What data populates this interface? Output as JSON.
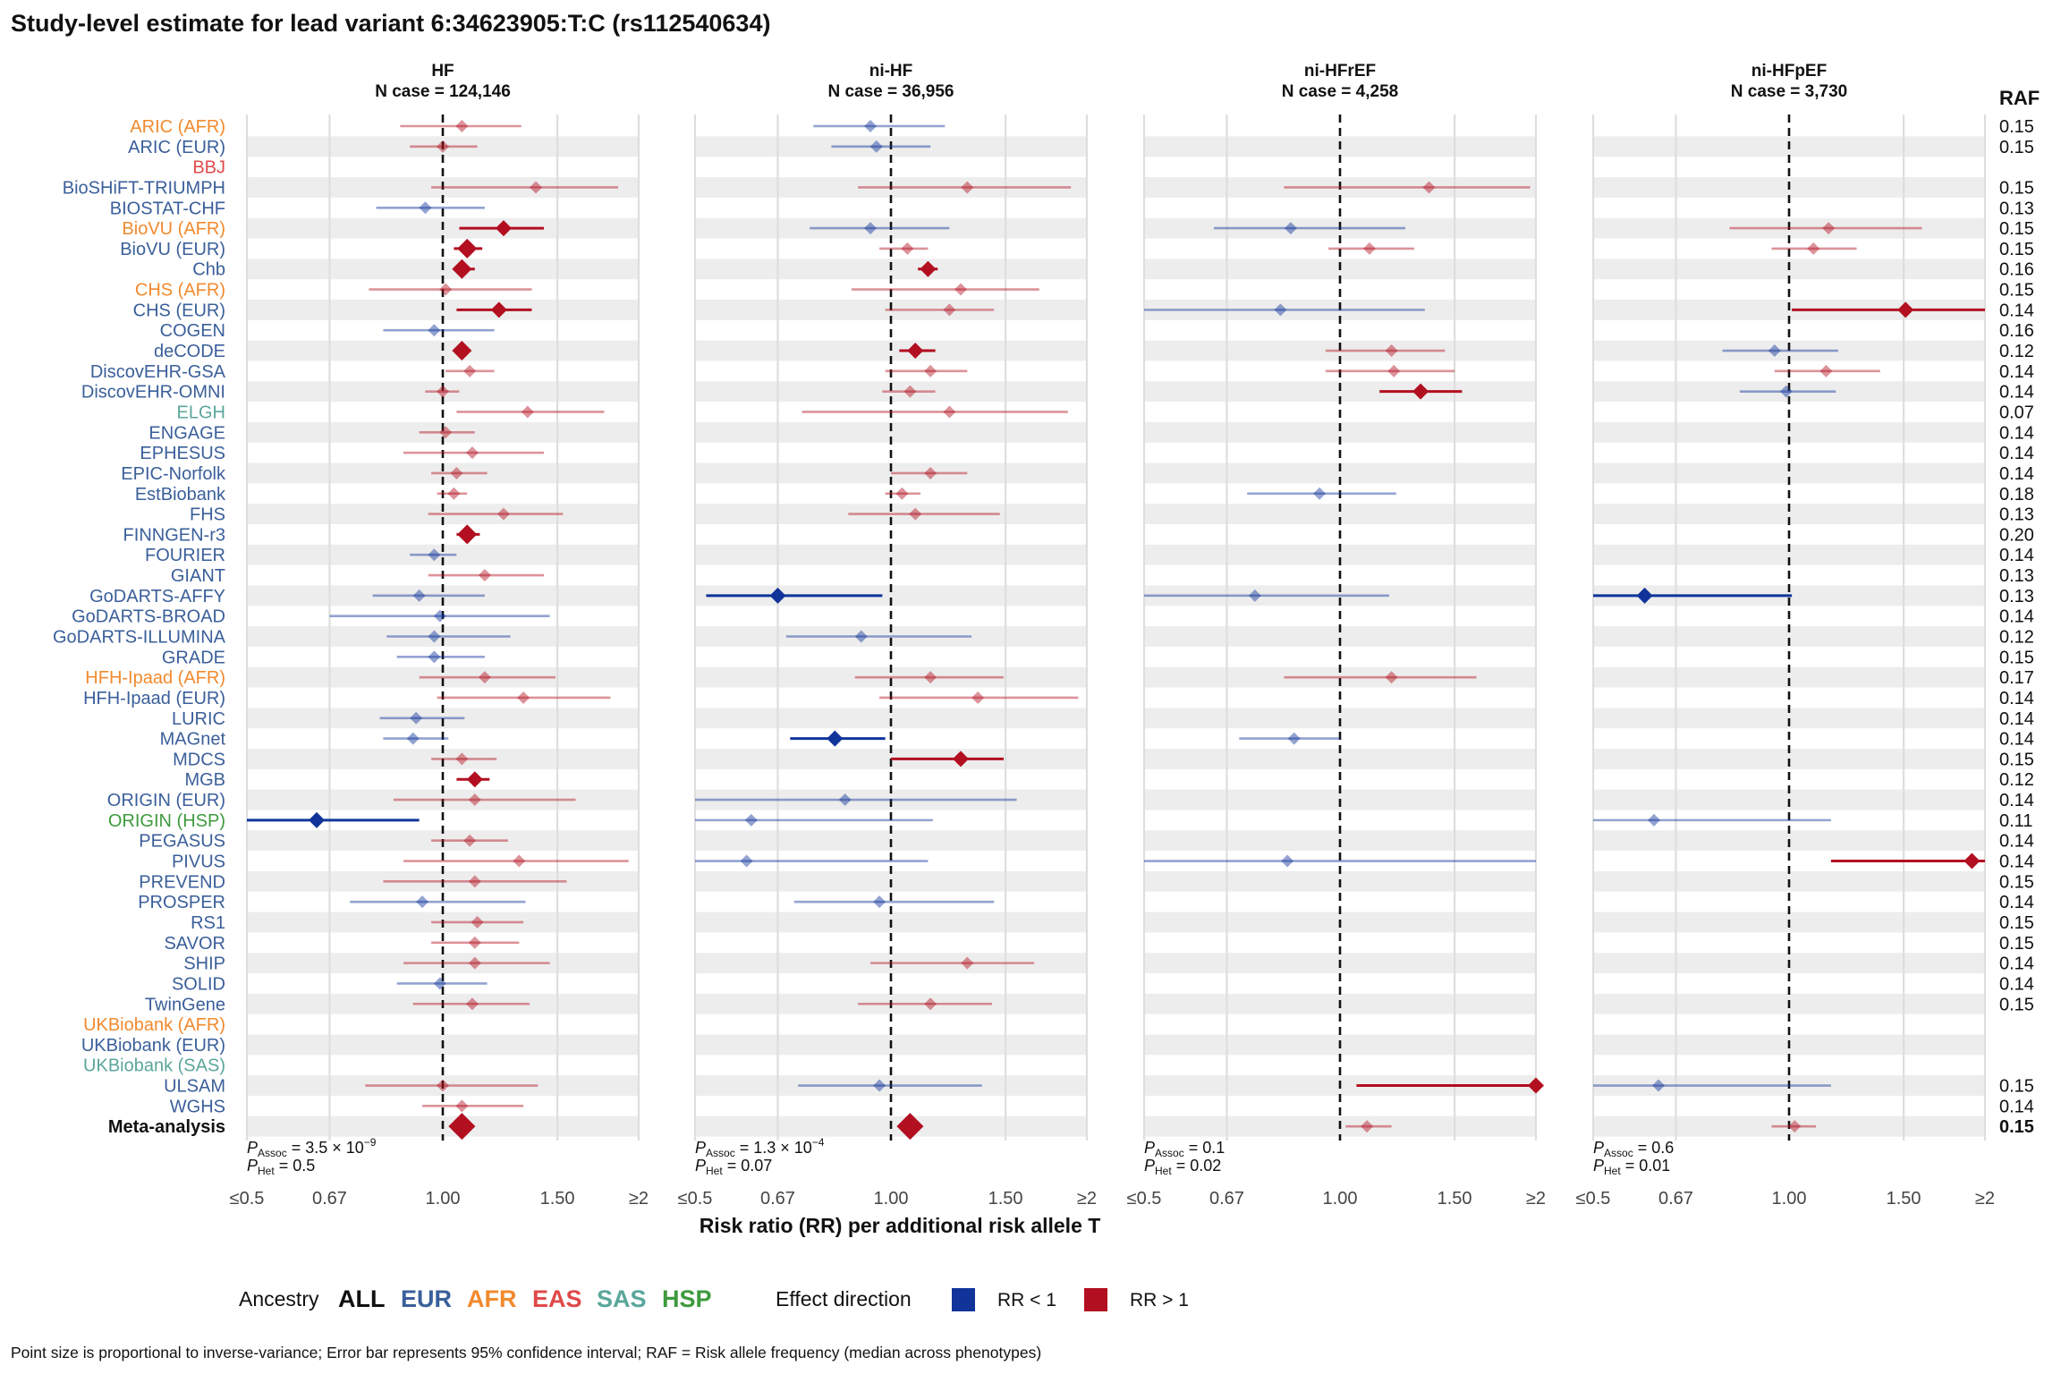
{
  "chart_data": {
    "type": "forest",
    "title": "Study-level estimate for lead variant 6:34623905:T:C (rs112540634)",
    "xlabel": "Risk ratio (RR) per additional risk allele T",
    "x_ticks": [
      "≤0.5",
      "0.67",
      "1.00",
      "1.50",
      "≥2"
    ],
    "x_scale": "log",
    "xlim": [
      0.5,
      2
    ],
    "reference_line": 1.0,
    "raf_header": "RAF",
    "ancestry_colors": {
      "ALL": "#111111",
      "EUR": "#3a5f9a",
      "AFR": "#f28a2e",
      "EAS": "#e04a4a",
      "SAS": "#5aa69a",
      "HSP": "#3e9a3e"
    },
    "effect_colors": {
      "lt1": "#10349a",
      "gt1": "#b20f20"
    },
    "studies": [
      {
        "name": "ARIC (AFR)",
        "ancestry": "AFR",
        "raf": "0.15"
      },
      {
        "name": "ARIC (EUR)",
        "ancestry": "EUR",
        "raf": "0.15"
      },
      {
        "name": "BBJ",
        "ancestry": "EAS",
        "raf": ""
      },
      {
        "name": "BioSHiFT-TRIUMPH",
        "ancestry": "EUR",
        "raf": "0.15"
      },
      {
        "name": "BIOSTAT-CHF",
        "ancestry": "EUR",
        "raf": "0.13"
      },
      {
        "name": "BioVU (AFR)",
        "ancestry": "AFR",
        "raf": "0.15"
      },
      {
        "name": "BioVU (EUR)",
        "ancestry": "EUR",
        "raf": "0.15"
      },
      {
        "name": "Chb",
        "ancestry": "EUR",
        "raf": "0.16"
      },
      {
        "name": "CHS (AFR)",
        "ancestry": "AFR",
        "raf": "0.15"
      },
      {
        "name": "CHS (EUR)",
        "ancestry": "EUR",
        "raf": "0.14"
      },
      {
        "name": "COGEN",
        "ancestry": "EUR",
        "raf": "0.16"
      },
      {
        "name": "deCODE",
        "ancestry": "EUR",
        "raf": "0.12"
      },
      {
        "name": "DiscovEHR-GSA",
        "ancestry": "EUR",
        "raf": "0.14"
      },
      {
        "name": "DiscovEHR-OMNI",
        "ancestry": "EUR",
        "raf": "0.14"
      },
      {
        "name": "ELGH",
        "ancestry": "SAS",
        "raf": "0.07"
      },
      {
        "name": "ENGAGE",
        "ancestry": "EUR",
        "raf": "0.14"
      },
      {
        "name": "EPHESUS",
        "ancestry": "EUR",
        "raf": "0.14"
      },
      {
        "name": "EPIC-Norfolk",
        "ancestry": "EUR",
        "raf": "0.14"
      },
      {
        "name": "EstBiobank",
        "ancestry": "EUR",
        "raf": "0.18"
      },
      {
        "name": "FHS",
        "ancestry": "EUR",
        "raf": "0.13"
      },
      {
        "name": "FINNGEN-r3",
        "ancestry": "EUR",
        "raf": "0.20"
      },
      {
        "name": "FOURIER",
        "ancestry": "EUR",
        "raf": "0.14"
      },
      {
        "name": "GIANT",
        "ancestry": "EUR",
        "raf": "0.13"
      },
      {
        "name": "GoDARTS-AFFY",
        "ancestry": "EUR",
        "raf": "0.13"
      },
      {
        "name": "GoDARTS-BROAD",
        "ancestry": "EUR",
        "raf": "0.14"
      },
      {
        "name": "GoDARTS-ILLUMINA",
        "ancestry": "EUR",
        "raf": "0.12"
      },
      {
        "name": "GRADE",
        "ancestry": "EUR",
        "raf": "0.15"
      },
      {
        "name": "HFH-Ipaad (AFR)",
        "ancestry": "AFR",
        "raf": "0.17"
      },
      {
        "name": "HFH-Ipaad (EUR)",
        "ancestry": "EUR",
        "raf": "0.14"
      },
      {
        "name": "LURIC",
        "ancestry": "EUR",
        "raf": "0.14"
      },
      {
        "name": "MAGnet",
        "ancestry": "EUR",
        "raf": "0.14"
      },
      {
        "name": "MDCS",
        "ancestry": "EUR",
        "raf": "0.15"
      },
      {
        "name": "MGB",
        "ancestry": "EUR",
        "raf": "0.12"
      },
      {
        "name": "ORIGIN (EUR)",
        "ancestry": "EUR",
        "raf": "0.14"
      },
      {
        "name": "ORIGIN (HSP)",
        "ancestry": "HSP",
        "raf": "0.11"
      },
      {
        "name": "PEGASUS",
        "ancestry": "EUR",
        "raf": "0.14"
      },
      {
        "name": "PIVUS",
        "ancestry": "EUR",
        "raf": "0.14"
      },
      {
        "name": "PREVEND",
        "ancestry": "EUR",
        "raf": "0.15"
      },
      {
        "name": "PROSPER",
        "ancestry": "EUR",
        "raf": "0.14"
      },
      {
        "name": "RS1",
        "ancestry": "EUR",
        "raf": "0.15"
      },
      {
        "name": "SAVOR",
        "ancestry": "EUR",
        "raf": "0.15"
      },
      {
        "name": "SHIP",
        "ancestry": "EUR",
        "raf": "0.14"
      },
      {
        "name": "SOLID",
        "ancestry": "EUR",
        "raf": "0.14"
      },
      {
        "name": "TwinGene",
        "ancestry": "EUR",
        "raf": "0.15"
      },
      {
        "name": "UKBiobank (AFR)",
        "ancestry": "AFR",
        "raf": ""
      },
      {
        "name": "UKBiobank (EUR)",
        "ancestry": "EUR",
        "raf": ""
      },
      {
        "name": "UKBiobank (SAS)",
        "ancestry": "SAS",
        "raf": ""
      },
      {
        "name": "ULSAM",
        "ancestry": "EUR",
        "raf": "0.15"
      },
      {
        "name": "WGHS",
        "ancestry": "EUR",
        "raf": "0.14"
      },
      {
        "name": "Meta-analysis",
        "ancestry": "ALL",
        "raf": "0.15",
        "bold": true
      }
    ],
    "panels": [
      {
        "title": "HF",
        "subtitle": "N case = 124,146",
        "p_assoc_prefix": "P",
        "p_assoc_sub": "Assoc",
        "p_assoc_value": " = 3.5 × 10",
        "p_assoc_exp": "−9",
        "p_het_prefix": "P",
        "p_het_sub": "Het",
        "p_het_value": " = 0.5",
        "estimates": [
          [
            0,
            1.07,
            0.86,
            1.32,
            1
          ],
          [
            1,
            1.0,
            0.89,
            1.13,
            1
          ],
          [
            3,
            1.39,
            0.96,
            1.86,
            1
          ],
          [
            4,
            0.94,
            0.79,
            1.16,
            1
          ],
          [
            5,
            1.24,
            1.06,
            1.43,
            2
          ],
          [
            6,
            1.09,
            1.04,
            1.15,
            3
          ],
          [
            7,
            1.07,
            1.04,
            1.12,
            3
          ],
          [
            8,
            1.01,
            0.77,
            1.37,
            1
          ],
          [
            9,
            1.22,
            1.05,
            1.37,
            2
          ],
          [
            10,
            0.97,
            0.81,
            1.2,
            1
          ],
          [
            11,
            1.07,
            1.05,
            1.1,
            3
          ],
          [
            12,
            1.1,
            1.01,
            1.2,
            1
          ],
          [
            13,
            1.0,
            0.94,
            1.06,
            1
          ],
          [
            14,
            1.35,
            1.05,
            1.77,
            1
          ],
          [
            15,
            1.01,
            0.92,
            1.12,
            1
          ],
          [
            16,
            1.11,
            0.87,
            1.43,
            1
          ],
          [
            17,
            1.05,
            0.96,
            1.17,
            1
          ],
          [
            18,
            1.04,
            0.98,
            1.09,
            1
          ],
          [
            19,
            1.24,
            0.95,
            1.53,
            1
          ],
          [
            20,
            1.09,
            1.05,
            1.14,
            3
          ],
          [
            21,
            0.97,
            0.89,
            1.05,
            1
          ],
          [
            22,
            1.16,
            0.95,
            1.43,
            1
          ],
          [
            23,
            0.92,
            0.78,
            1.16,
            1
          ],
          [
            24,
            0.99,
            0.67,
            1.46,
            1
          ],
          [
            25,
            0.97,
            0.82,
            1.27,
            1
          ],
          [
            26,
            0.97,
            0.85,
            1.16,
            1
          ],
          [
            27,
            1.16,
            0.92,
            1.49,
            1
          ],
          [
            28,
            1.33,
            0.98,
            1.81,
            1
          ],
          [
            29,
            0.91,
            0.8,
            1.08,
            1
          ],
          [
            30,
            0.9,
            0.81,
            1.02,
            1
          ],
          [
            31,
            1.07,
            0.96,
            1.21,
            1
          ],
          [
            32,
            1.12,
            1.05,
            1.18,
            2
          ],
          [
            33,
            1.12,
            0.84,
            1.6,
            1
          ],
          [
            34,
            0.64,
            0.5,
            0.92,
            2
          ],
          [
            35,
            1.1,
            0.96,
            1.26,
            1
          ],
          [
            36,
            1.31,
            0.87,
            1.93,
            1
          ],
          [
            37,
            1.12,
            0.81,
            1.55,
            1
          ],
          [
            38,
            0.93,
            0.72,
            1.34,
            1
          ],
          [
            39,
            1.13,
            0.96,
            1.33,
            1
          ],
          [
            40,
            1.12,
            0.96,
            1.31,
            1
          ],
          [
            41,
            1.12,
            0.87,
            1.46,
            1
          ],
          [
            42,
            0.99,
            0.85,
            1.17,
            1
          ],
          [
            43,
            1.11,
            0.9,
            1.36,
            1
          ],
          [
            47,
            1.0,
            0.76,
            1.4,
            1
          ],
          [
            48,
            1.07,
            0.93,
            1.33,
            1
          ],
          [
            49,
            1.07,
            1.04,
            1.1,
            4
          ]
        ]
      },
      {
        "title": "ni-HF",
        "subtitle": "N case = 36,956",
        "p_assoc_prefix": "P",
        "p_assoc_sub": "Assoc",
        "p_assoc_value": " = 1.3 × 10",
        "p_assoc_exp": "−4",
        "p_het_prefix": "P",
        "p_het_sub": "Het",
        "p_het_value": " = 0.07",
        "estimates": [
          [
            0,
            0.93,
            0.76,
            1.21,
            1
          ],
          [
            1,
            0.95,
            0.81,
            1.15,
            1
          ],
          [
            3,
            1.31,
            0.89,
            1.89,
            1
          ],
          [
            5,
            0.93,
            0.75,
            1.23,
            1
          ],
          [
            6,
            1.06,
            0.96,
            1.14,
            1
          ],
          [
            7,
            1.14,
            1.1,
            1.18,
            2
          ],
          [
            8,
            1.28,
            0.87,
            1.69,
            1
          ],
          [
            9,
            1.23,
            0.98,
            1.44,
            1
          ],
          [
            11,
            1.09,
            1.03,
            1.17,
            2
          ],
          [
            12,
            1.15,
            0.98,
            1.31,
            1
          ],
          [
            13,
            1.07,
            0.97,
            1.17,
            1
          ],
          [
            14,
            1.23,
            0.73,
            1.87,
            1
          ],
          [
            17,
            1.15,
            1.0,
            1.31,
            1
          ],
          [
            18,
            1.04,
            0.98,
            1.11,
            1
          ],
          [
            19,
            1.09,
            0.86,
            1.47,
            1
          ],
          [
            23,
            0.67,
            0.52,
            0.97,
            2
          ],
          [
            25,
            0.9,
            0.69,
            1.33,
            1
          ],
          [
            27,
            1.15,
            0.88,
            1.49,
            1
          ],
          [
            28,
            1.36,
            0.96,
            1.94,
            1
          ],
          [
            30,
            0.82,
            0.7,
            0.98,
            2
          ],
          [
            31,
            1.28,
            1.0,
            1.49,
            2
          ],
          [
            33,
            0.85,
            0.5,
            1.56,
            1
          ],
          [
            34,
            0.61,
            0.5,
            1.16,
            1
          ],
          [
            36,
            0.6,
            0.5,
            1.14,
            1
          ],
          [
            38,
            0.96,
            0.71,
            1.44,
            1
          ],
          [
            41,
            1.31,
            0.93,
            1.66,
            1
          ],
          [
            43,
            1.15,
            0.89,
            1.43,
            1
          ],
          [
            47,
            0.96,
            0.72,
            1.38,
            1
          ],
          [
            49,
            1.07,
            1.04,
            1.1,
            4
          ]
        ]
      },
      {
        "title": "ni-HFrEF",
        "subtitle": "N case = 4,258",
        "p_assoc_prefix": "P",
        "p_assoc_sub": "Assoc",
        "p_assoc_value": " = 0.1",
        "p_assoc_exp": "",
        "p_het_prefix": "P",
        "p_het_sub": "Het",
        "p_het_value": " = 0.02",
        "estimates": [
          [
            3,
            1.37,
            0.82,
            1.96,
            1
          ],
          [
            5,
            0.84,
            0.64,
            1.26,
            1
          ],
          [
            6,
            1.11,
            0.96,
            1.3,
            1
          ],
          [
            9,
            0.81,
            0.5,
            1.35,
            1
          ],
          [
            11,
            1.2,
            0.95,
            1.45,
            1
          ],
          [
            12,
            1.21,
            0.95,
            1.5,
            1
          ],
          [
            13,
            1.33,
            1.15,
            1.54,
            2
          ],
          [
            18,
            0.93,
            0.72,
            1.22,
            1
          ],
          [
            23,
            0.74,
            0.5,
            1.19,
            1
          ],
          [
            27,
            1.2,
            0.82,
            1.62,
            1
          ],
          [
            30,
            0.85,
            0.7,
            1.0,
            1
          ],
          [
            36,
            0.83,
            0.5,
            2.0,
            1
          ],
          [
            47,
            2.0,
            1.06,
            2.0,
            2
          ],
          [
            49,
            1.1,
            1.02,
            1.2,
            1
          ]
        ]
      },
      {
        "title": "ni-HFpEF",
        "subtitle": "N case = 3,730",
        "p_assoc_prefix": "P",
        "p_assoc_sub": "Assoc",
        "p_assoc_value": " = 0.6",
        "p_assoc_exp": "",
        "p_het_prefix": "P",
        "p_het_sub": "Het",
        "p_het_value": " = 0.01",
        "estimates": [
          [
            5,
            1.15,
            0.81,
            1.6,
            1
          ],
          [
            6,
            1.09,
            0.94,
            1.27,
            1
          ],
          [
            9,
            1.51,
            1.01,
            2.0,
            2
          ],
          [
            11,
            0.95,
            0.79,
            1.19,
            1
          ],
          [
            12,
            1.14,
            0.95,
            1.38,
            1
          ],
          [
            13,
            0.99,
            0.84,
            1.18,
            1
          ],
          [
            23,
            0.6,
            0.5,
            1.01,
            2
          ],
          [
            34,
            0.62,
            0.5,
            1.16,
            1
          ],
          [
            36,
            1.91,
            1.16,
            2.0,
            2
          ],
          [
            47,
            0.63,
            0.5,
            1.16,
            1
          ],
          [
            49,
            1.02,
            0.94,
            1.1,
            1
          ]
        ]
      }
    ],
    "legend": {
      "ancestry_title": "Ancestry",
      "ancestry_items": [
        "ALL",
        "EUR",
        "AFR",
        "EAS",
        "SAS",
        "HSP"
      ],
      "effect_title": "Effect direction",
      "effect_items": [
        "RR < 1",
        "RR > 1"
      ]
    },
    "footnote": "Point size is proportional to inverse-variance; Error bar represents 95% confidence interval; RAF = Risk allele frequency (median across phenotypes)"
  }
}
